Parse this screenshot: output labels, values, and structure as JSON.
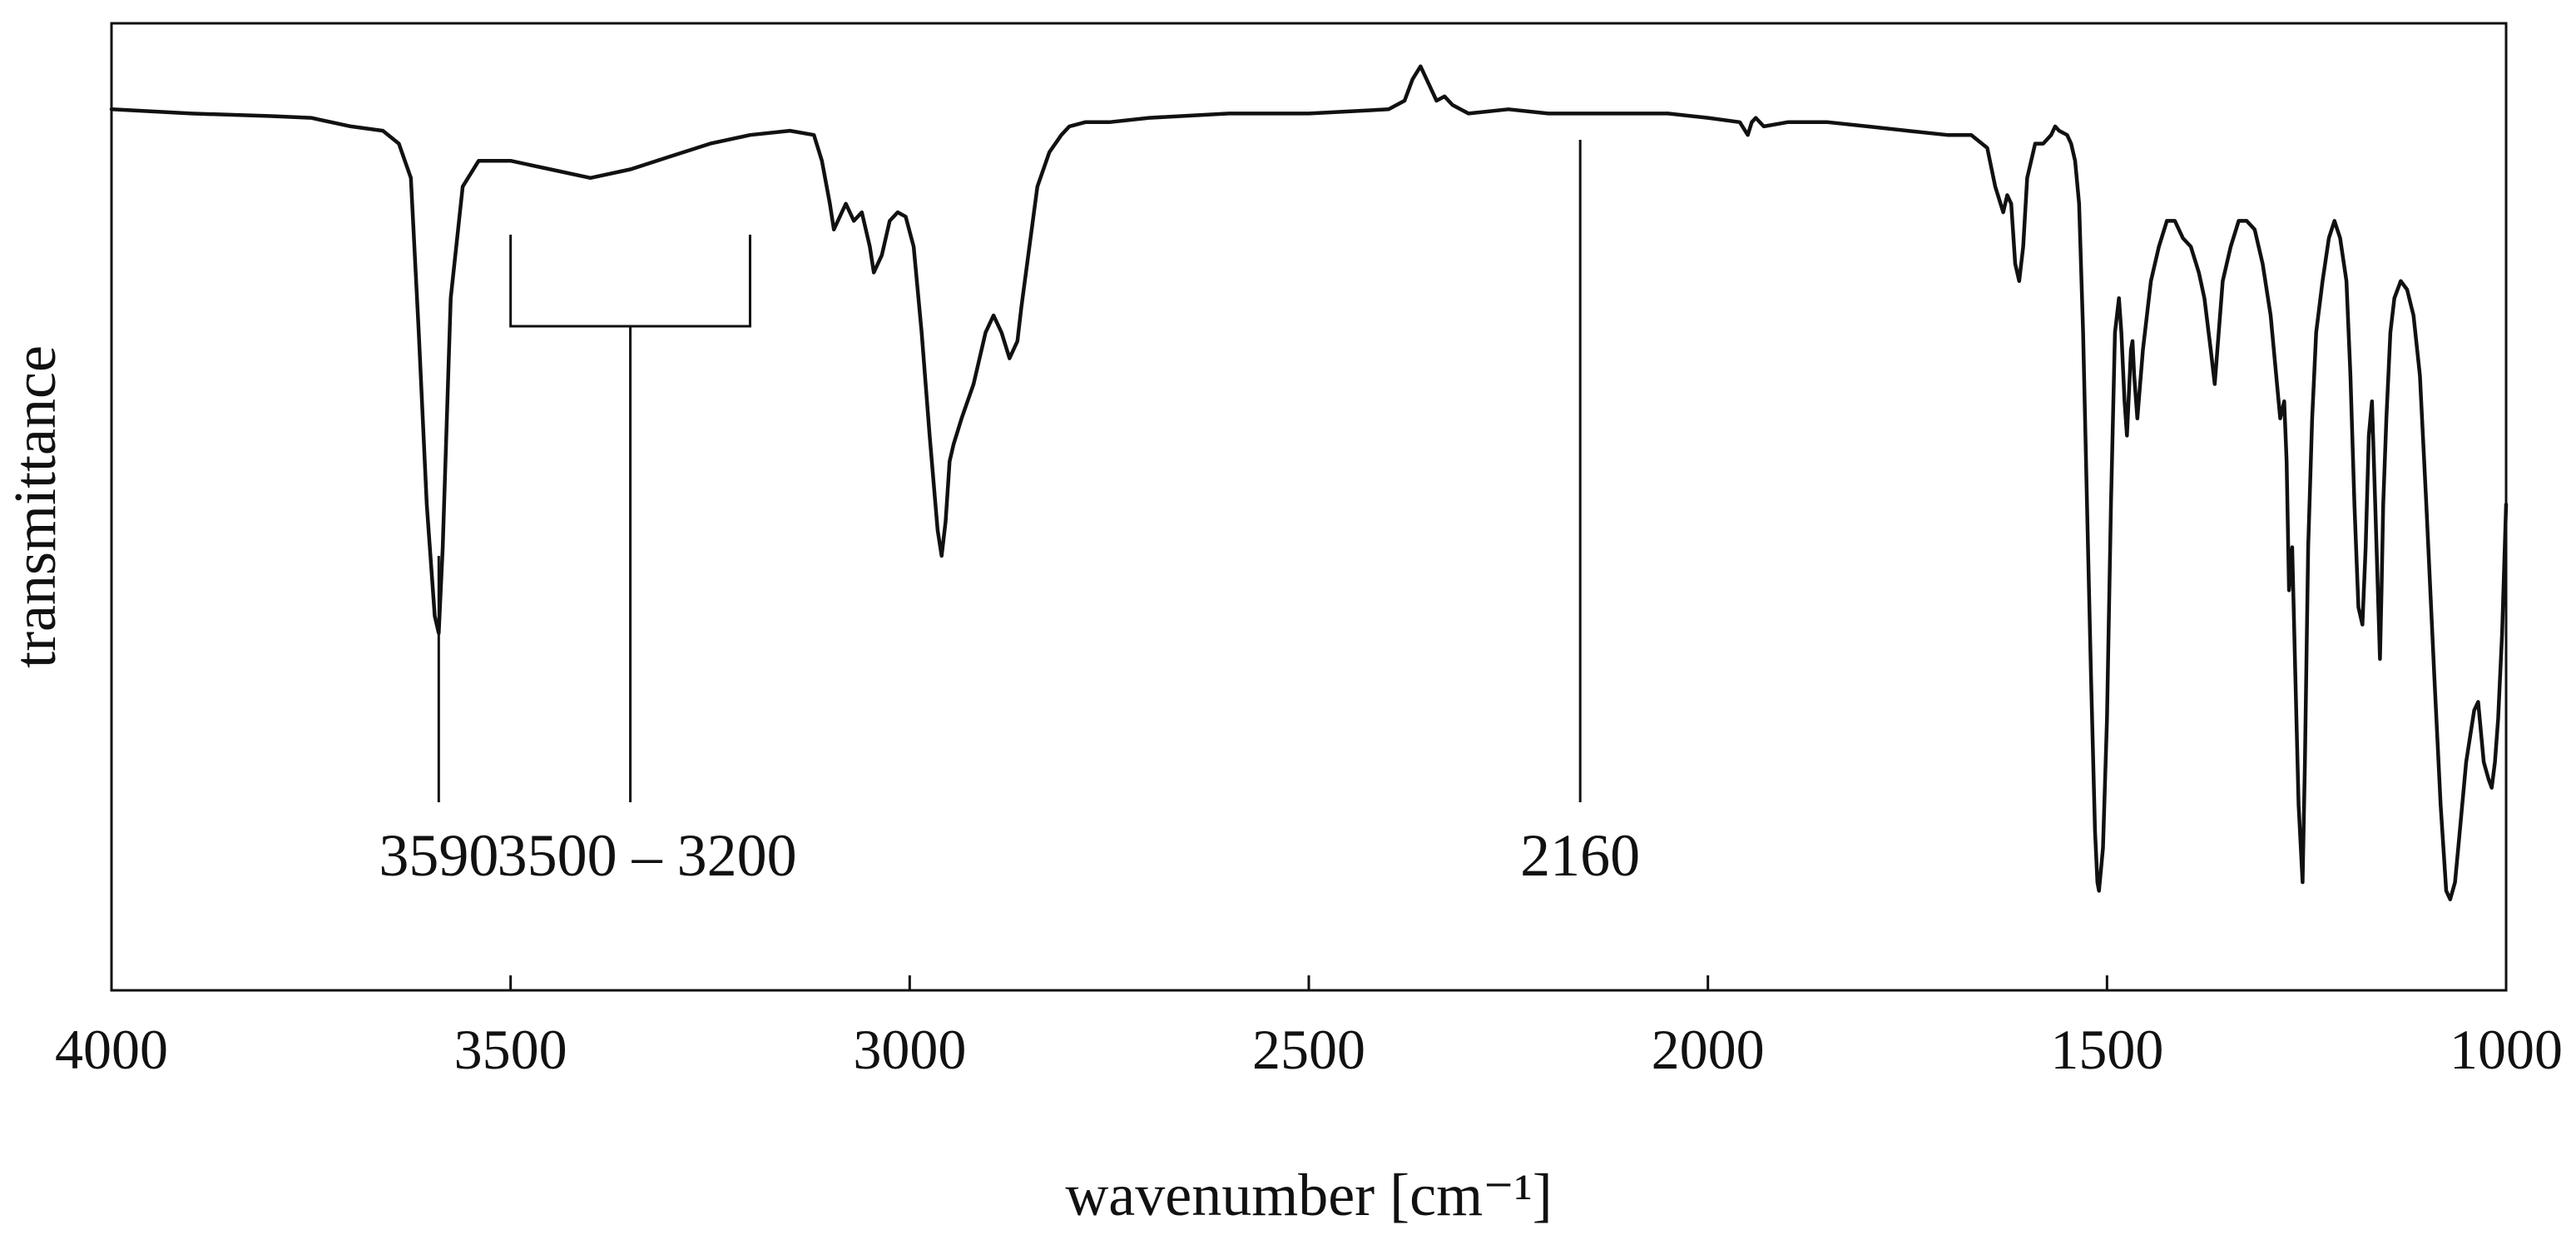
{
  "chart_data": {
    "type": "line",
    "xlabel": "wavenumber [cm⁻¹]",
    "ylabel": "transmittance",
    "xlim": [
      4000,
      1000
    ],
    "ylim": [
      0,
      1
    ],
    "x_reversed": true,
    "grid": false,
    "legend": "none",
    "y_ticks_shown": false,
    "x_ticks": [
      4000,
      3500,
      3000,
      2500,
      2000,
      1500,
      1000
    ],
    "x_tick_labels": [
      "4000",
      "3500",
      "3000",
      "2500",
      "2000",
      "1500",
      "1000"
    ],
    "line_color": "#111111",
    "series": [
      {
        "x": [
          4000,
          3900,
          3800,
          3750,
          3700,
          3660,
          3640,
          3625,
          3615,
          3605,
          3595,
          3590,
          3585,
          3575,
          3560,
          3540,
          3500,
          3450,
          3400,
          3350,
          3300,
          3250,
          3200,
          3150,
          3120,
          3110,
          3100,
          3095,
          3085,
          3080,
          3070,
          3060,
          3050,
          3045,
          3035,
          3025,
          3015,
          3005,
          2995,
          2985,
          2975,
          2965,
          2960,
          2955,
          2950,
          2945,
          2935,
          2920,
          2905,
          2895,
          2885,
          2875,
          2865,
          2860,
          2850,
          2840,
          2825,
          2810,
          2800,
          2780,
          2750,
          2700,
          2600,
          2500,
          2400,
          2380,
          2370,
          2360,
          2350,
          2340,
          2330,
          2320,
          2300,
          2250,
          2200,
          2160,
          2100,
          2050,
          2000,
          1960,
          1950,
          1945,
          1940,
          1930,
          1900,
          1850,
          1800,
          1750,
          1700,
          1670,
          1650,
          1640,
          1630,
          1625,
          1620,
          1615,
          1610,
          1605,
          1600,
          1590,
          1580,
          1570,
          1565,
          1560,
          1550,
          1545,
          1540,
          1535,
          1530,
          1525,
          1520,
          1515,
          1512,
          1510,
          1505,
          1500,
          1495,
          1490,
          1485,
          1482,
          1478,
          1475,
          1470,
          1468,
          1466,
          1462,
          1455,
          1445,
          1435,
          1425,
          1415,
          1405,
          1395,
          1385,
          1378,
          1370,
          1365,
          1360,
          1355,
          1345,
          1335,
          1325,
          1315,
          1305,
          1295,
          1288,
          1283,
          1278,
          1275,
          1272,
          1268,
          1264,
          1260,
          1255,
          1252,
          1248,
          1243,
          1238,
          1230,
          1222,
          1215,
          1208,
          1200,
          1195,
          1190,
          1185,
          1180,
          1176,
          1172,
          1168,
          1164,
          1160,
          1158,
          1156,
          1154,
          1150,
          1145,
          1140,
          1132,
          1124,
          1116,
          1108,
          1100,
          1090,
          1082,
          1075,
          1070,
          1064,
          1058,
          1050,
          1040,
          1035,
          1028,
          1022,
          1018,
          1014,
          1010,
          1005,
          1000
        ],
        "y": [
          0.96,
          0.955,
          0.952,
          0.95,
          0.94,
          0.935,
          0.92,
          0.88,
          0.7,
          0.5,
          0.37,
          0.35,
          0.45,
          0.74,
          0.87,
          0.9,
          0.9,
          0.89,
          0.88,
          0.89,
          0.905,
          0.92,
          0.93,
          0.935,
          0.93,
          0.9,
          0.85,
          0.82,
          0.84,
          0.85,
          0.83,
          0.84,
          0.8,
          0.77,
          0.79,
          0.83,
          0.84,
          0.835,
          0.8,
          0.7,
          0.58,
          0.47,
          0.44,
          0.48,
          0.55,
          0.57,
          0.6,
          0.64,
          0.7,
          0.72,
          0.7,
          0.67,
          0.69,
          0.73,
          0.8,
          0.87,
          0.91,
          0.93,
          0.94,
          0.945,
          0.945,
          0.95,
          0.955,
          0.955,
          0.96,
          0.97,
          0.995,
          1.01,
          0.99,
          0.97,
          0.975,
          0.965,
          0.955,
          0.96,
          0.955,
          0.955,
          0.955,
          0.955,
          0.95,
          0.945,
          0.93,
          0.945,
          0.95,
          0.94,
          0.945,
          0.945,
          0.94,
          0.935,
          0.93,
          0.93,
          0.915,
          0.87,
          0.84,
          0.86,
          0.85,
          0.78,
          0.76,
          0.8,
          0.88,
          0.92,
          0.92,
          0.93,
          0.94,
          0.935,
          0.93,
          0.92,
          0.9,
          0.85,
          0.7,
          0.5,
          0.3,
          0.12,
          0.06,
          0.05,
          0.1,
          0.25,
          0.5,
          0.7,
          0.74,
          0.7,
          0.62,
          0.58,
          0.68,
          0.69,
          0.65,
          0.6,
          0.68,
          0.76,
          0.8,
          0.83,
          0.83,
          0.81,
          0.8,
          0.77,
          0.74,
          0.68,
          0.64,
          0.7,
          0.76,
          0.8,
          0.83,
          0.83,
          0.82,
          0.78,
          0.72,
          0.65,
          0.6,
          0.62,
          0.55,
          0.4,
          0.45,
          0.3,
          0.15,
          0.06,
          0.2,
          0.45,
          0.6,
          0.7,
          0.76,
          0.81,
          0.83,
          0.81,
          0.76,
          0.65,
          0.5,
          0.38,
          0.36,
          0.45,
          0.58,
          0.62,
          0.5,
          0.38,
          0.32,
          0.4,
          0.5,
          0.6,
          0.7,
          0.74,
          0.76,
          0.75,
          0.72,
          0.65,
          0.5,
          0.3,
          0.15,
          0.05,
          0.04,
          0.06,
          0.12,
          0.2,
          0.26,
          0.27,
          0.2,
          0.18,
          0.17,
          0.2,
          0.25,
          0.35,
          0.5
        ]
      }
    ],
    "annotations": [
      {
        "label": "3590",
        "x": 3590,
        "kind": "line"
      },
      {
        "label": "3500 – 3200",
        "x_from": 3500,
        "x_to": 3200,
        "kind": "bracket"
      },
      {
        "label": "2160",
        "x": 2160,
        "kind": "line"
      }
    ]
  }
}
